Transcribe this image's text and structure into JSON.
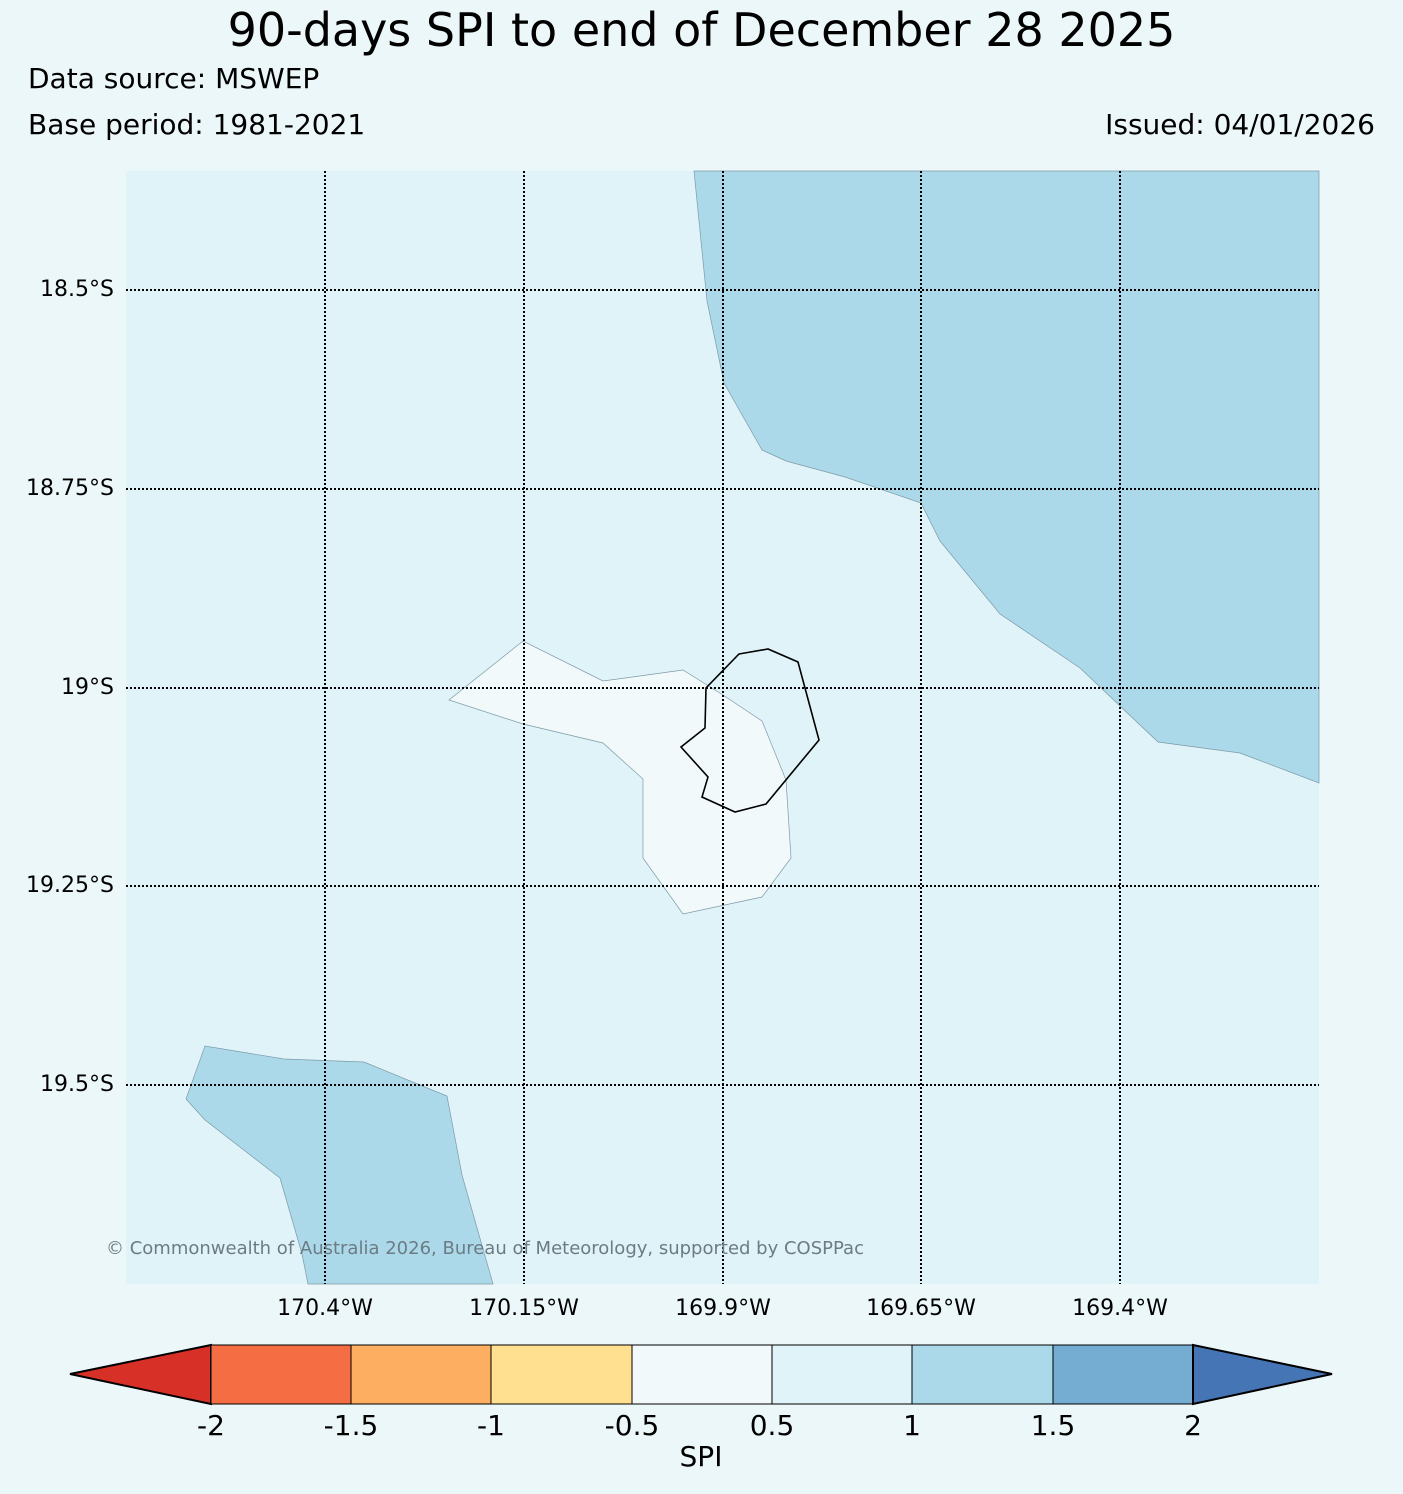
{
  "title": "90-days SPI to end of December 28 2025",
  "data_source": "Data source: MSWEP",
  "base_period": "Base period: 1981-2021",
  "issued": "Issued: 04/01/2026",
  "copyright": "© Commonwealth of Australia 2026, Bureau of Meteorology, supported by COSPPac",
  "map": {
    "latitude_labels": [
      "18.5°S",
      "18.75°S",
      "19°S",
      "19.25°S",
      "19.5°S"
    ],
    "longitude_labels": [
      "170.4°W",
      "170.15°W",
      "169.9°W",
      "169.65°W",
      "169.4°W"
    ],
    "regions": [
      {
        "category": "0.5 to 1",
        "color": "#e0f3f8"
      },
      {
        "category": "1 to 1.5",
        "color": "#abd9e9"
      },
      {
        "category": "-0.5 to 0.5",
        "color": "#f1f9fb"
      }
    ]
  },
  "colorbar": {
    "title": "SPI",
    "tick_labels": [
      "-2",
      "-1.5",
      "-1",
      "-0.5",
      "0.5",
      "1",
      "1.5",
      "2"
    ],
    "extend_low_color": "#d73027",
    "extend_high_color": "#4575b4",
    "colors": [
      "#f46d43",
      "#fdae61",
      "#fee090",
      "#f1f9fb",
      "#e0f3f8",
      "#abd9e9",
      "#74add1"
    ]
  }
}
